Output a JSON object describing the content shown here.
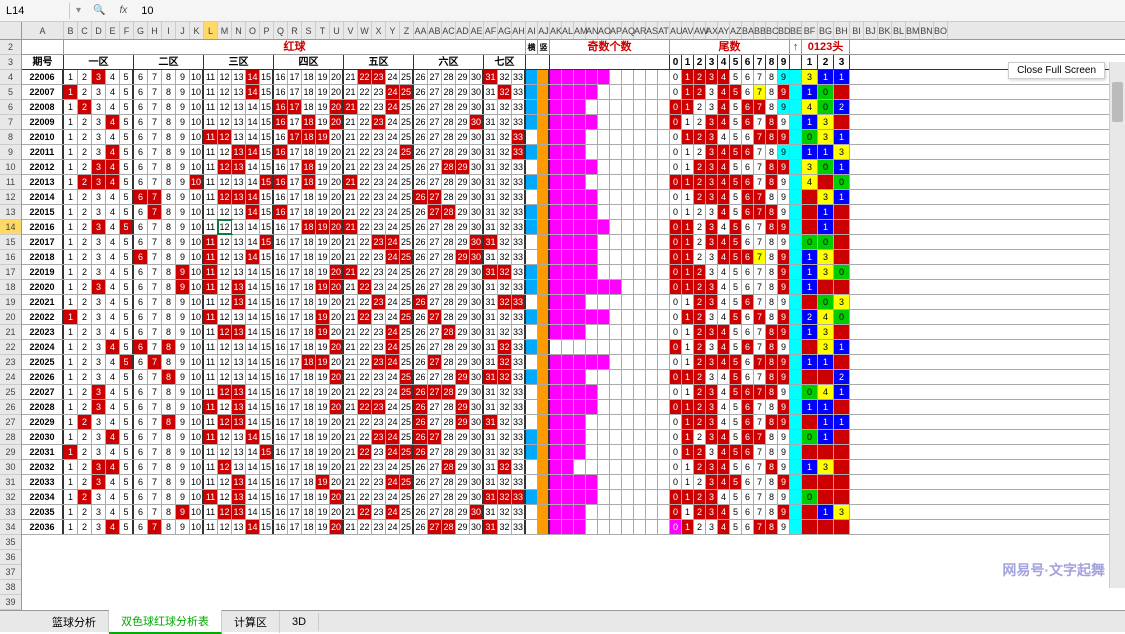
{
  "formula_bar": {
    "cell_ref": "L14",
    "fx_label": "fx",
    "value": "10"
  },
  "close_button": "Close Full Screen",
  "columns": [
    "A",
    "B",
    "C",
    "D",
    "E",
    "F",
    "G",
    "H",
    "I",
    "J",
    "K",
    "L",
    "M",
    "N",
    "O",
    "P",
    "Q",
    "R",
    "S",
    "T",
    "U",
    "V",
    "W",
    "X",
    "Y",
    "Z",
    "AA",
    "AB",
    "AC",
    "AD",
    "AE",
    "AF",
    "AG",
    "AH",
    "AI",
    "AJ",
    "AK",
    "AL",
    "AM",
    "AN",
    "AO",
    "AP",
    "AQ",
    "AR",
    "AS",
    "AT",
    "AU",
    "AV",
    "AW",
    "AX",
    "AY",
    "AZ",
    "BA",
    "BB",
    "BC",
    "BD",
    "BE",
    "BF",
    "BG",
    "BH",
    "BI",
    "BJ",
    "BK",
    "BL",
    "BM",
    "BN",
    "BO"
  ],
  "selected_col": "L",
  "selected_row": 14,
  "row_start": 2,
  "row_end": 40,
  "titles": {
    "red_ball": "红球",
    "horiz": "横连",
    "vert": "竖连",
    "odd_count": "奇数个数",
    "tail": "尾数",
    "arrow": "↑",
    "head": "0123头"
  },
  "section_headers": {
    "period": "期号",
    "zones": [
      "一区",
      "二区",
      "三区",
      "四区",
      "五区",
      "六区",
      "七区"
    ],
    "tails": [
      "0",
      "1",
      "2",
      "3",
      "4",
      "5",
      "6",
      "7",
      "8",
      "9"
    ],
    "heads": [
      "1",
      "2",
      "3"
    ]
  },
  "zone_numbers": [
    [
      1,
      2,
      3,
      4,
      5
    ],
    [
      6,
      7,
      8,
      9,
      10
    ],
    [
      11,
      12,
      13,
      14,
      15
    ],
    [
      16,
      17,
      18,
      19,
      20
    ],
    [
      21,
      22,
      23,
      24,
      25
    ],
    [
      26,
      27,
      28,
      29,
      30
    ],
    [
      31,
      32,
      33
    ]
  ],
  "rows": [
    {
      "p": "22006",
      "hits": [
        3,
        14,
        22,
        23,
        31
      ],
      "seg": [
        1,
        0,
        5
      ],
      "tails": {
        "0": "",
        "1": "r",
        "2": "r",
        "3": "r",
        "4": "r",
        "5": "",
        "6": "",
        "7": "",
        "8": "",
        "9": "c"
      },
      "heads": [
        "3",
        "1",
        "1"
      ]
    },
    {
      "p": "22007",
      "hits": [
        1,
        14,
        24,
        25,
        32
      ],
      "seg": [
        1,
        0,
        4
      ],
      "tails": {
        "0": "",
        "1": "r",
        "2": "r",
        "3": "",
        "4": "r",
        "5": "r",
        "6": "",
        "7": "y",
        "8": "",
        "9": "r"
      },
      "heads": [
        "1",
        "0",
        "r"
      ]
    },
    {
      "p": "22008",
      "hits": [
        2,
        16,
        17,
        20,
        21,
        24
      ],
      "seg": [
        1,
        0,
        3
      ],
      "tails": {
        "0": "r",
        "1": "r",
        "2": "",
        "3": "",
        "4": "r",
        "5": "",
        "6": "r",
        "7": "r",
        "8": "",
        "9": "c"
      },
      "heads": [
        "4",
        "0",
        "2"
      ]
    },
    {
      "p": "22009",
      "hits": [
        4,
        16,
        18,
        20,
        23,
        30
      ],
      "seg": [
        1,
        0,
        4
      ],
      "tails": {
        "0": "r",
        "1": "",
        "2": "",
        "3": "r",
        "4": "r",
        "5": "",
        "6": "r",
        "7": "",
        "8": "r",
        "9": ""
      },
      "heads": [
        "1",
        "3",
        "r"
      ]
    },
    {
      "p": "22010",
      "hits": [
        11,
        12,
        17,
        18,
        19,
        33
      ],
      "seg": [
        0,
        0,
        3
      ],
      "tails": {
        "0": "",
        "1": "r",
        "2": "r",
        "3": "r",
        "4": "",
        "5": "",
        "6": "",
        "7": "r",
        "8": "r",
        "9": "r"
      },
      "heads": [
        "0",
        "3",
        "1"
      ]
    },
    {
      "p": "22011",
      "hits": [
        4,
        13,
        14,
        16,
        25,
        33
      ],
      "seg": [
        1,
        0,
        3
      ],
      "tails": {
        "0": "",
        "1": "",
        "2": "",
        "3": "r",
        "4": "r",
        "5": "r",
        "6": "r",
        "7": "",
        "8": "",
        "9": "c"
      },
      "heads": [
        "1",
        "1",
        "3"
      ]
    },
    {
      "p": "22012",
      "hits": [
        3,
        4,
        12,
        13,
        18,
        28,
        29
      ],
      "seg": [
        0,
        0,
        4
      ],
      "tails": {
        "0": "",
        "1": "",
        "2": "r",
        "3": "r",
        "4": "r",
        "5": "",
        "6": "",
        "7": "",
        "8": "r",
        "9": "r"
      },
      "heads": [
        "3",
        "0",
        "1"
      ]
    },
    {
      "p": "22013",
      "hits": [
        2,
        3,
        4,
        10,
        15,
        16,
        18,
        21
      ],
      "seg": [
        1,
        0,
        3
      ],
      "tails": {
        "0": "r",
        "1": "r",
        "2": "r",
        "3": "r",
        "4": "r",
        "5": "r",
        "6": "r",
        "7": "",
        "8": "r",
        "9": ""
      },
      "heads": [
        "4",
        "r",
        "0"
      ]
    },
    {
      "p": "22014",
      "hits": [
        6,
        7,
        12,
        13,
        14,
        26,
        27
      ],
      "seg": [
        0,
        0,
        4
      ],
      "tails": {
        "0": "",
        "1": "",
        "2": "r",
        "3": "r",
        "4": "r",
        "5": "",
        "6": "r",
        "7": "r",
        "8": "",
        "9": ""
      },
      "heads": [
        "r",
        "3",
        "1"
      ]
    },
    {
      "p": "22015",
      "hits": [
        7,
        14,
        16,
        27,
        28
      ],
      "seg": [
        1,
        0,
        4
      ],
      "tails": {
        "0": "",
        "1": "",
        "2": "",
        "3": "",
        "4": "r",
        "5": "",
        "6": "r",
        "7": "r",
        "8": "r",
        "9": ""
      },
      "heads": [
        "r",
        "1",
        "r"
      ]
    },
    {
      "p": "22016",
      "hits": [
        3,
        5,
        18,
        19,
        20,
        21
      ],
      "seg": [
        1,
        0,
        5
      ],
      "tails": {
        "0": "r",
        "1": "r",
        "2": "",
        "3": "r",
        "4": "",
        "5": "r",
        "6": "",
        "7": "",
        "8": "r",
        "9": "r"
      },
      "heads": [
        "r",
        "1",
        "r"
      ]
    },
    {
      "p": "22017",
      "hits": [
        11,
        15,
        23,
        24,
        30,
        31
      ],
      "seg": [
        0,
        0,
        4
      ],
      "tails": {
        "0": "r",
        "1": "r",
        "2": "",
        "3": "r",
        "4": "r",
        "5": "r",
        "6": "",
        "7": "",
        "8": "",
        "9": ""
      },
      "heads": [
        "0",
        "0",
        "r"
      ]
    },
    {
      "p": "22018",
      "hits": [
        6,
        11,
        14,
        24,
        25,
        29,
        30
      ],
      "seg": [
        0,
        0,
        4
      ],
      "tails": {
        "0": "r",
        "1": "r",
        "2": "",
        "3": "",
        "4": "r",
        "5": "r",
        "6": "r",
        "7": "y",
        "8": "",
        "9": "r"
      },
      "heads": [
        "1",
        "3",
        "r"
      ]
    },
    {
      "p": "22019",
      "hits": [
        9,
        11,
        20,
        21,
        31,
        32
      ],
      "seg": [
        1,
        0,
        4
      ],
      "tails": {
        "0": "r",
        "1": "r",
        "2": "r",
        "3": "",
        "4": "",
        "5": "",
        "6": "",
        "7": "",
        "8": "",
        "9": "r"
      },
      "heads": [
        "1",
        "3",
        "0"
      ]
    },
    {
      "p": "22020",
      "hits": [
        3,
        9,
        11,
        13,
        19,
        20,
        22
      ],
      "seg": [
        1,
        0,
        6
      ],
      "tails": {
        "0": "r",
        "1": "r",
        "2": "r",
        "3": "r",
        "4": "",
        "5": "",
        "6": "",
        "7": "",
        "8": "",
        "9": "r"
      },
      "heads": [
        "1",
        "r",
        "r"
      ]
    },
    {
      "p": "22021",
      "hits": [
        13,
        23,
        26,
        32,
        33
      ],
      "seg": [
        0,
        0,
        3
      ],
      "tails": {
        "0": "",
        "1": "",
        "2": "r",
        "3": "r",
        "4": "",
        "5": "",
        "6": "r",
        "7": "",
        "8": "",
        "9": ""
      },
      "heads": [
        "r",
        "0",
        "3"
      ]
    },
    {
      "p": "22022",
      "hits": [
        1,
        11,
        19,
        22,
        25,
        27
      ],
      "seg": [
        1,
        0,
        5
      ],
      "tails": {
        "0": "",
        "1": "r",
        "2": "r",
        "3": "",
        "4": "",
        "5": "r",
        "6": "",
        "7": "r",
        "8": "",
        "9": "r"
      },
      "heads": [
        "2",
        "4",
        "0"
      ]
    },
    {
      "p": "22023",
      "hits": [
        12,
        13,
        19,
        24,
        28
      ],
      "seg": [
        0,
        0,
        3
      ],
      "tails": {
        "0": "",
        "1": "",
        "2": "r",
        "3": "r",
        "4": "r",
        "5": "",
        "6": "",
        "7": "",
        "8": "r",
        "9": "r"
      },
      "heads": [
        "1",
        "3",
        "r"
      ]
    },
    {
      "p": "22024",
      "hits": [
        4,
        6,
        8,
        20,
        24,
        32
      ],
      "seg": [
        1,
        0,
        0
      ],
      "tails": {
        "0": "r",
        "1": "",
        "2": "r",
        "3": "",
        "4": "r",
        "5": "",
        "6": "r",
        "7": "",
        "8": "r",
        "9": ""
      },
      "heads": [
        "r",
        "3",
        "1"
      ]
    },
    {
      "p": "22025",
      "hits": [
        5,
        7,
        18,
        19,
        23,
        24,
        27,
        32
      ],
      "seg": [
        0,
        0,
        5
      ],
      "tails": {
        "0": "",
        "1": "",
        "2": "r",
        "3": "r",
        "4": "r",
        "5": "r",
        "6": "",
        "7": "r",
        "8": "r",
        "9": "r"
      },
      "heads": [
        "1",
        "1",
        "r"
      ]
    },
    {
      "p": "22026",
      "hits": [
        8,
        20,
        25,
        29,
        31,
        32
      ],
      "seg": [
        1,
        0,
        3
      ],
      "tails": {
        "0": "r",
        "1": "r",
        "2": "r",
        "3": "",
        "4": "",
        "5": "r",
        "6": "",
        "7": "",
        "8": "r",
        "9": "r"
      },
      "heads": [
        "r",
        "r",
        "2"
      ]
    },
    {
      "p": "22027",
      "hits": [
        3,
        12,
        13,
        25,
        26,
        27,
        28
      ],
      "seg": [
        0,
        0,
        4
      ],
      "tails": {
        "0": "",
        "1": "",
        "2": "r",
        "3": "r",
        "4": "",
        "5": "r",
        "6": "r",
        "7": "r",
        "8": "r",
        "9": ""
      },
      "heads": [
        "0",
        "4",
        "1"
      ]
    },
    {
      "p": "22028",
      "hits": [
        3,
        11,
        13,
        20,
        22,
        23,
        26,
        29
      ],
      "seg": [
        0,
        0,
        4
      ],
      "tails": {
        "0": "r",
        "1": "r",
        "2": "r",
        "3": "r",
        "4": "",
        "5": "",
        "6": "r",
        "7": "",
        "8": "",
        "9": "r"
      },
      "heads": [
        "1",
        "1",
        "r"
      ]
    },
    {
      "p": "22029",
      "hits": [
        2,
        8,
        12,
        13,
        26,
        29,
        31
      ],
      "seg": [
        0,
        0,
        3
      ],
      "tails": {
        "0": "",
        "1": "r",
        "2": "r",
        "3": "r",
        "4": "",
        "5": "",
        "6": "r",
        "7": "",
        "8": "r",
        "9": "r"
      },
      "heads": [
        "r",
        "1",
        "1"
      ]
    },
    {
      "p": "22030",
      "hits": [
        4,
        11,
        14,
        23,
        24,
        26,
        27
      ],
      "seg": [
        1,
        0,
        3
      ],
      "tails": {
        "0": "",
        "1": "r",
        "2": "",
        "3": "r",
        "4": "r",
        "5": "",
        "6": "r",
        "7": "r",
        "8": "",
        "9": ""
      },
      "heads": [
        "0",
        "1",
        "r"
      ]
    },
    {
      "p": "22031",
      "hits": [
        1,
        15,
        22,
        24,
        25,
        26
      ],
      "seg": [
        1,
        0,
        3
      ],
      "tails": {
        "0": "",
        "1": "r",
        "2": "r",
        "3": "",
        "4": "r",
        "5": "r",
        "6": "r",
        "7": "",
        "8": "",
        "9": ""
      },
      "heads": [
        "r",
        "r",
        "r"
      ]
    },
    {
      "p": "22032",
      "hits": [
        3,
        4,
        12,
        28,
        32
      ],
      "seg": [
        0,
        0,
        2
      ],
      "tails": {
        "0": "",
        "1": "",
        "2": "r",
        "3": "r",
        "4": "r",
        "5": "",
        "6": "",
        "7": "",
        "8": "r",
        "9": ""
      },
      "heads": [
        "1",
        "3",
        "r"
      ]
    },
    {
      "p": "22033",
      "hits": [
        3,
        13,
        19,
        24,
        25
      ],
      "seg": [
        0,
        0,
        4
      ],
      "tails": {
        "0": "",
        "1": "",
        "2": "",
        "3": "r",
        "4": "r",
        "5": "r",
        "6": "",
        "7": "",
        "8": "",
        "9": "r"
      },
      "heads": [
        "r",
        "r",
        "r"
      ]
    },
    {
      "p": "22034",
      "hits": [
        2,
        11,
        13,
        20,
        31,
        32,
        33
      ],
      "seg": [
        1,
        0,
        4
      ],
      "tails": {
        "0": "r",
        "1": "r",
        "2": "r",
        "3": "r",
        "4": "",
        "5": "",
        "6": "",
        "7": "",
        "8": "",
        "9": ""
      },
      "heads": [
        "0",
        "r",
        "r"
      ]
    },
    {
      "p": "22035",
      "hits": [
        9,
        12,
        13,
        22,
        24,
        30
      ],
      "seg": [
        0,
        0,
        3
      ],
      "tails": {
        "0": "r",
        "1": "",
        "2": "r",
        "3": "r",
        "4": "r",
        "5": "",
        "6": "",
        "7": "",
        "8": "",
        "9": "r"
      },
      "heads": [
        "r",
        "1",
        "3"
      ]
    },
    {
      "p": "22036",
      "hits": [
        4,
        7,
        14,
        20,
        27,
        28,
        31
      ],
      "seg": [
        0,
        0,
        3
      ],
      "tails": {
        "0": "m",
        "1": "r",
        "2": "",
        "3": "",
        "4": "r",
        "5": "",
        "6": "",
        "7": "r",
        "8": "r",
        "9": ""
      },
      "heads": [
        "r",
        "r",
        "r"
      ]
    }
  ],
  "group_breaks": [
    5,
    10,
    15,
    20,
    25,
    30
  ],
  "tabs": [
    "篮球分析",
    "双色球红球分析表",
    "计算区",
    "3D"
  ],
  "active_tab": 1,
  "watermark": "网易号·文字起舞",
  "colors": {
    "hit": "#c00",
    "blue": "#0af",
    "orange": "#f90",
    "magenta": "#f0f",
    "yellow": "#ff0",
    "green": "#0c0",
    "cyan": "#0ff",
    "navy": "#00f"
  }
}
